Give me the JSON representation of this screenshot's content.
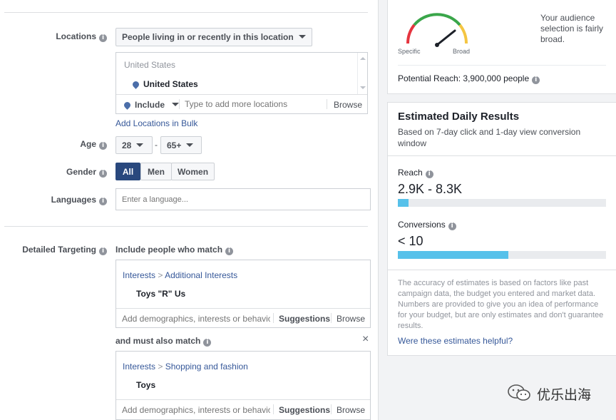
{
  "locations": {
    "label": "Locations",
    "type_dropdown": "People living in or recently in this location",
    "country_header": "United States",
    "selected": "United States",
    "include_label": "Include",
    "search_placeholder": "Type to add more locations",
    "browse": "Browse",
    "bulk_link": "Add Locations in Bulk"
  },
  "age": {
    "label": "Age",
    "min": "28",
    "separator": "-",
    "max": "65+"
  },
  "gender": {
    "label": "Gender",
    "options": [
      "All",
      "Men",
      "Women"
    ],
    "selected": "All"
  },
  "languages": {
    "label": "Languages",
    "placeholder": "Enter a language..."
  },
  "detailed_targeting": {
    "label": "Detailed Targeting",
    "include_label": "Include people who match",
    "group1": {
      "path_root": "Interests",
      "path_sep": ">",
      "path_leaf": "Additional Interests",
      "item": "Toys \"R\" Us"
    },
    "add_placeholder": "Add demographics, interests or behaviors",
    "suggestions": "Suggestions",
    "browse": "Browse",
    "and_label": "and must also match",
    "close_glyph": "×",
    "group2": {
      "path_root": "Interests",
      "path_sep": ">",
      "path_leaf": "Shopping and fashion",
      "item": "Toys"
    }
  },
  "audience": {
    "description": "Your audience selection is fairly broad.",
    "gauge_specific": "Specific",
    "gauge_broad": "Broad",
    "potential_reach": "Potential Reach: 3,900,000 people"
  },
  "estimates": {
    "title": "Estimated Daily Results",
    "subtitle": "Based on 7-day click and 1-day view conversion window",
    "reach_label": "Reach",
    "reach_value": "2.9K - 8.3K",
    "reach_fill": 0.05,
    "conversions_label": "Conversions",
    "conversions_value": "< 10",
    "conversions_fill": 0.53,
    "disclaimer": "The accuracy of estimates is based on factors like past campaign data, the budget you entered and market data. Numbers are provided to give you an idea of performance for your budget, but are only estimates and don't guarantee results.",
    "feedback_link": "Were these estimates helpful?"
  },
  "watermark": {
    "text": "优乐出海"
  },
  "colors": {
    "accent": "#4267b2",
    "selected_button": "#29487d",
    "bar": "#57c1ea",
    "gauge_red": "#e5353f",
    "gauge_green": "#3aa64a",
    "gauge_yellow": "#f4c542"
  }
}
